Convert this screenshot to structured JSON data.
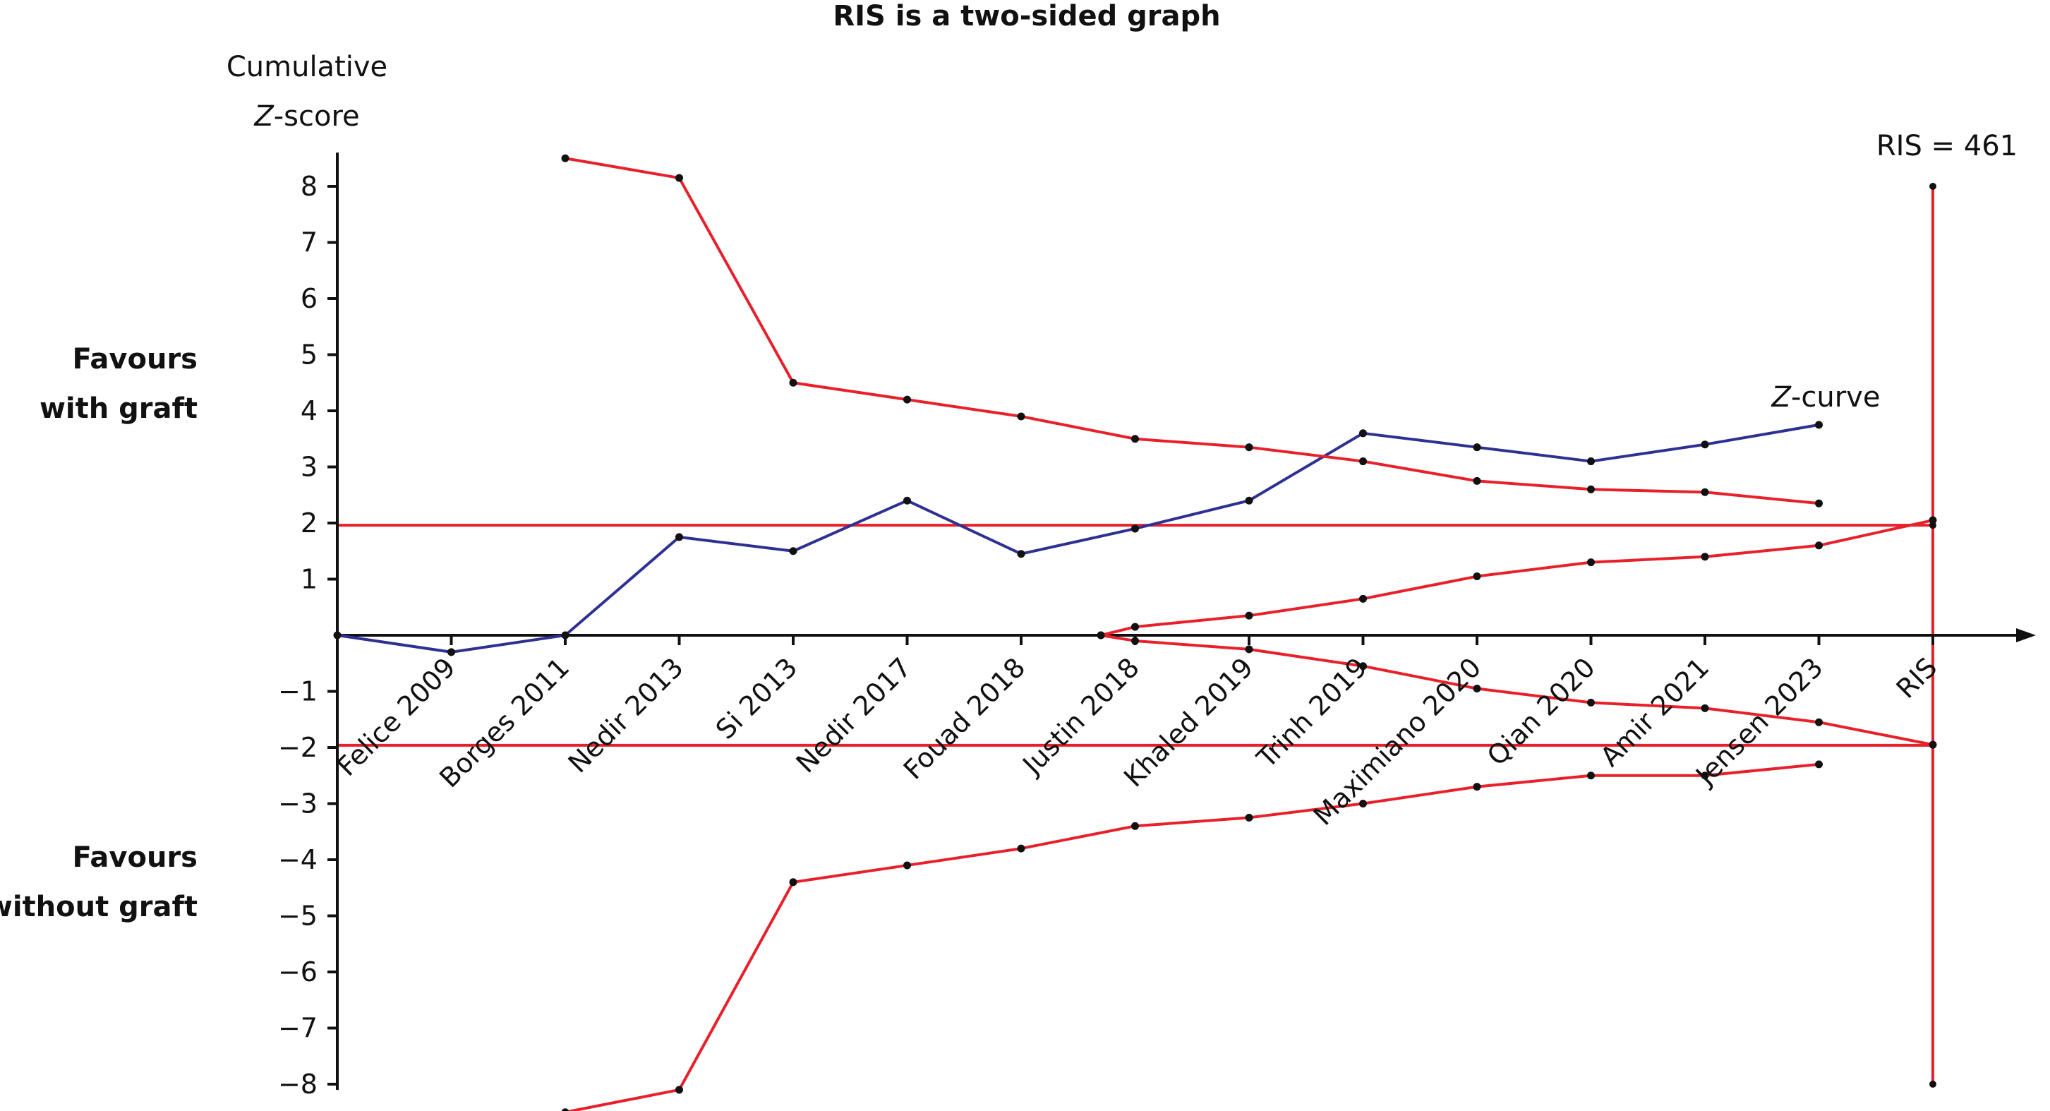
{
  "chart_data": {
    "type": "line",
    "title": "RIS is a two-sided graph",
    "ylabel_line1": "Cumulative",
    "ylabel_line2_z": "Z",
    "ylabel_line2_rest": "-score",
    "favours_top_line1": "Favours",
    "favours_top_line2": "with graft",
    "favours_bottom_line1": "Favours",
    "favours_bottom_line2": "without graft",
    "ris_annotation": "RIS = 461",
    "zcurve_label_z": "Z",
    "zcurve_label_rest": "-curve",
    "ylim": [
      -8,
      8
    ],
    "yticks": [
      "8",
      "7",
      "6",
      "5",
      "4",
      "3",
      "2",
      "1",
      "−1",
      "−2",
      "−3",
      "−4",
      "−5",
      "−6",
      "−7",
      "−8"
    ],
    "ytick_values": [
      8,
      7,
      6,
      5,
      4,
      3,
      2,
      1,
      -1,
      -2,
      -3,
      -4,
      -5,
      -6,
      -7,
      -8
    ],
    "categories": [
      "Felice 2009",
      "Borges 2011",
      "Nedir 2013",
      "Si 2013",
      "Nedir 2017",
      "Fouad 2018",
      "Justin 2018",
      "Khaled 2019",
      "Trinh 2019",
      "Maximiano 2020",
      "Qian 2020",
      "Amir 2021",
      "Jensen 2023",
      "RIS"
    ],
    "colors": {
      "zcurve": "#2e3192",
      "boundary": "#e8202a",
      "axis": "#111111"
    },
    "conventional_boundaries": [
      1.96,
      -1.96
    ],
    "ris_x": 13,
    "series": [
      {
        "key": "zcurve",
        "x": [
          -1,
          0,
          1,
          2,
          3,
          4,
          5,
          6,
          7,
          8,
          9,
          10,
          11,
          12
        ],
        "y": [
          0,
          -0.3,
          0,
          1.75,
          1.5,
          2.4,
          1.45,
          1.9,
          2.4,
          3.6,
          3.35,
          3.1,
          3.4,
          3.75
        ]
      },
      {
        "key": "upper_monitoring",
        "x": [
          1,
          2,
          3,
          4,
          5,
          6,
          7,
          8,
          9,
          10,
          11,
          12
        ],
        "y": [
          8.5,
          8.15,
          4.5,
          4.2,
          3.9,
          3.5,
          3.35,
          3.1,
          2.75,
          2.6,
          2.55,
          2.35
        ]
      },
      {
        "key": "lower_monitoring",
        "x": [
          1,
          2,
          3,
          4,
          5,
          6,
          7,
          8,
          9,
          10,
          11,
          12
        ],
        "y": [
          -8.5,
          -8.1,
          -4.4,
          -4.1,
          -3.8,
          -3.4,
          -3.25,
          -3.0,
          -2.7,
          -2.5,
          -2.5,
          -2.3
        ]
      },
      {
        "key": "upper_futility",
        "x": [
          5.7,
          6,
          7,
          8,
          9,
          10,
          11,
          12,
          13
        ],
        "y": [
          0,
          0.15,
          0.35,
          0.65,
          1.05,
          1.3,
          1.4,
          1.6,
          2.05
        ]
      },
      {
        "key": "lower_futility",
        "x": [
          5.7,
          6,
          7,
          8,
          9,
          10,
          11,
          12,
          13
        ],
        "y": [
          0,
          -0.1,
          -0.25,
          -0.55,
          -0.95,
          -1.2,
          -1.3,
          -1.55,
          -1.95
        ]
      }
    ]
  }
}
